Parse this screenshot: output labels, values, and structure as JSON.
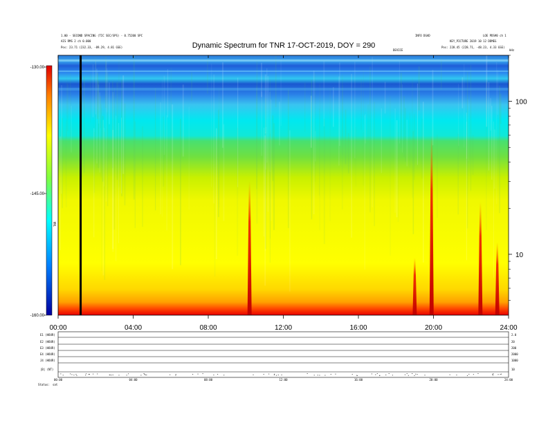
{
  "chart_data": {
    "type": "heatmap",
    "title": "Dynamic Spectrum for TNR 17-OCT-2019, DOY = 290",
    "header_left_1": "1.00 - SECOND SPACING (TIC SEC/SPS) - 0.75200 SPC",
    "header_left_2": "AIS RMS 2 ch 0.000",
    "header_left_3": "Pos:   23.71 (232.33, -89.29, 4.81 GSE)",
    "header_right_1": "INFO DGAD",
    "header_right_2": "LOE PDS#0 ch 1",
    "header_right_3": "KEY_PICTURE  2019  10 12  DDMEG",
    "header_right_4": "Pos:   228.45 (228.71, -48.23, 4.33 GSE)",
    "marker_label": "DEVICE",
    "right_corner_label": "kHz",
    "x_ticks": [
      "00:00",
      "04:00",
      "08:00",
      "12:00",
      "16:00",
      "20:00",
      "24:00"
    ],
    "x_range_hours": [
      0,
      24
    ],
    "y_axis": "log",
    "y_ticks": [
      "100",
      "10"
    ],
    "y_tick_values_khz": [
      100,
      10
    ],
    "y_range_khz": [
      4,
      200
    ],
    "colorbar": {
      "label": "TNR",
      "ticks": [
        "-130.00",
        "-145.00",
        "-160.00"
      ],
      "range": [
        -160,
        -130
      ]
    },
    "marker_time_hours": 1.2,
    "bursts": [
      {
        "time_hours": 10.2,
        "from_khz": 4,
        "to_khz": 30
      },
      {
        "time_hours": 19.0,
        "from_khz": 4,
        "to_khz": 9.5
      },
      {
        "time_hours": 19.9,
        "from_khz": 4,
        "to_khz": 60
      },
      {
        "time_hours": 22.5,
        "from_khz": 4,
        "to_khz": 22
      },
      {
        "time_hours": 23.4,
        "from_khz": 4,
        "to_khz": 12
      }
    ],
    "lower_panels": [
      {
        "name": "E1 (HOUR)",
        "right": "2.0"
      },
      {
        "name": "E2 (HOUR)",
        "right": "20"
      },
      {
        "name": "E3 (HOUR)",
        "right": "200"
      },
      {
        "name": "E4 (HOUR)",
        "right": "2000"
      },
      {
        "name": "J4 (HOUR)",
        "right": "1000"
      },
      {
        "name": "|B| (NT)",
        "right": "10"
      }
    ],
    "lower_x_ticks": [
      "00:00",
      "04:00",
      "08:00",
      "12:00",
      "16:00",
      "20:00",
      "24:00"
    ],
    "footer_label_1": "Status:",
    "footer_label_2": "sat"
  }
}
